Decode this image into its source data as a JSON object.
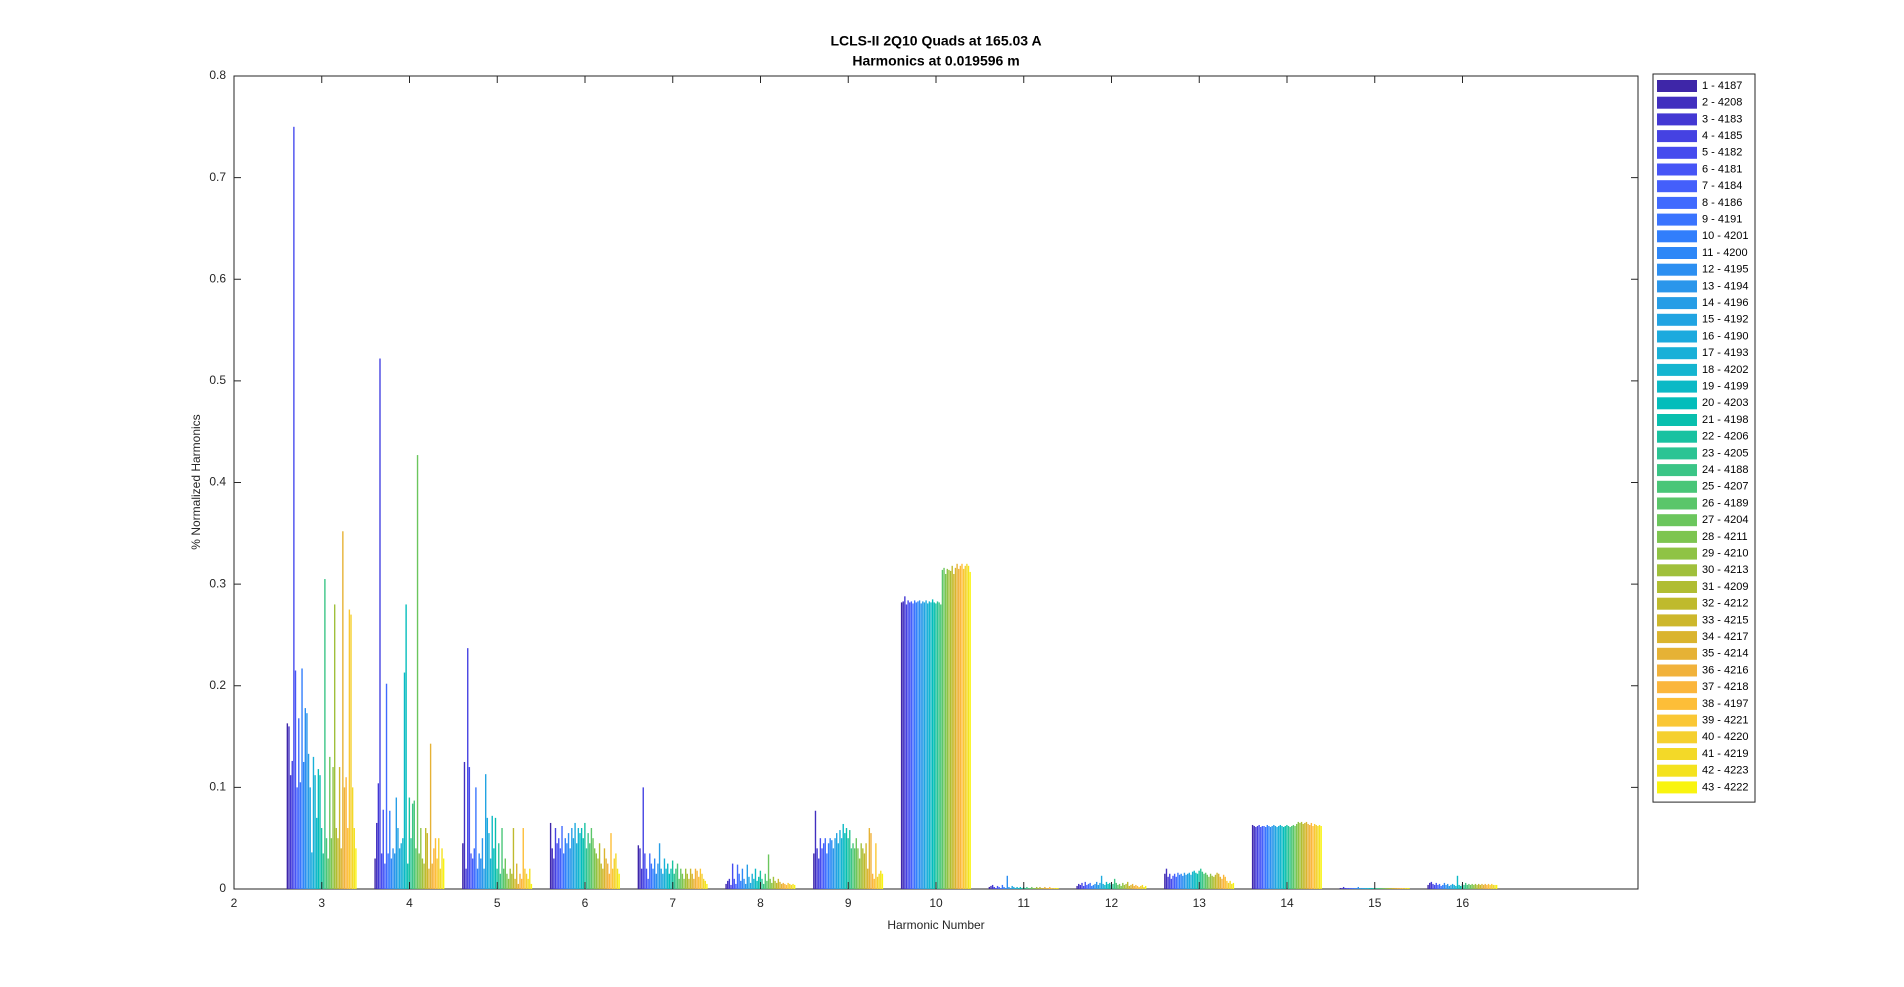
{
  "chart_data": {
    "type": "bar",
    "title": "LCLS-II 2Q10 Quads at 165.03 A",
    "subtitle": "Harmonics at 0.019596 m",
    "xlabel": "Harmonic Number",
    "ylabel": "% Normalized Harmonics",
    "x": [
      3,
      4,
      5,
      6,
      7,
      8,
      9,
      10,
      11,
      12,
      13,
      14,
      15,
      16
    ],
    "xlim": [
      2,
      18
    ],
    "ylim": [
      0,
      0.8
    ],
    "xticks": [
      2,
      3,
      4,
      5,
      6,
      7,
      8,
      9,
      10,
      11,
      12,
      13,
      14,
      15,
      16
    ],
    "yticks": [
      0,
      0.1,
      0.2,
      0.3,
      0.4,
      0.5,
      0.6,
      0.7,
      0.8
    ],
    "grid": false,
    "legend": "outside-right",
    "series": [
      {
        "name": "1 - 4187",
        "color": "#3e26a8",
        "values": [
          0.163,
          0.03,
          0.045,
          0.065,
          0.043,
          0.005,
          0.035,
          0.282,
          0.002,
          0.003,
          0.015,
          0.063,
          0.001,
          0.004
        ]
      },
      {
        "name": "2 - 4208",
        "color": "#412fbf",
        "values": [
          0.16,
          0.065,
          0.125,
          0.04,
          0.04,
          0.008,
          0.077,
          0.283,
          0.003,
          0.005,
          0.02,
          0.062,
          0.001,
          0.006
        ]
      },
      {
        "name": "3 - 4183",
        "color": "#4338d3",
        "values": [
          0.112,
          0.104,
          0.02,
          0.03,
          0.02,
          0.01,
          0.04,
          0.288,
          0.004,
          0.004,
          0.012,
          0.061,
          0.002,
          0.007
        ]
      },
      {
        "name": "4 - 4185",
        "color": "#4542e2",
        "values": [
          0.126,
          0.522,
          0.237,
          0.06,
          0.1,
          0.004,
          0.03,
          0.28,
          0.002,
          0.006,
          0.015,
          0.062,
          0.001,
          0.005
        ]
      },
      {
        "name": "5 - 4182",
        "color": "#464bee",
        "values": [
          0.75,
          0.035,
          0.12,
          0.045,
          0.035,
          0.025,
          0.05,
          0.284,
          0.001,
          0.003,
          0.01,
          0.063,
          0.001,
          0.004
        ]
      },
      {
        "name": "6 - 4181",
        "color": "#4655f6",
        "values": [
          0.215,
          0.078,
          0.035,
          0.05,
          0.02,
          0.01,
          0.04,
          0.282,
          0.003,
          0.007,
          0.013,
          0.061,
          0.001,
          0.006
        ]
      },
      {
        "name": "7 - 4184",
        "color": "#445ffb",
        "values": [
          0.1,
          0.025,
          0.03,
          0.04,
          0.01,
          0.005,
          0.045,
          0.283,
          0.002,
          0.004,
          0.015,
          0.062,
          0.001,
          0.004
        ]
      },
      {
        "name": "8 - 4186",
        "color": "#406afe",
        "values": [
          0.168,
          0.202,
          0.04,
          0.062,
          0.035,
          0.024,
          0.05,
          0.281,
          0.001,
          0.005,
          0.012,
          0.062,
          0.001,
          0.005
        ]
      },
      {
        "name": "9 - 4191",
        "color": "#3a74fe",
        "values": [
          0.105,
          0.035,
          0.1,
          0.035,
          0.025,
          0.015,
          0.035,
          0.284,
          0.004,
          0.006,
          0.016,
          0.061,
          0.001,
          0.003
        ]
      },
      {
        "name": "10 - 4201",
        "color": "#317efc",
        "values": [
          0.217,
          0.077,
          0.02,
          0.05,
          0.02,
          0.008,
          0.045,
          0.282,
          0.002,
          0.003,
          0.014,
          0.063,
          0.001,
          0.004
        ]
      },
      {
        "name": "11 - 4200",
        "color": "#2e87f7",
        "values": [
          0.125,
          0.03,
          0.035,
          0.045,
          0.03,
          0.02,
          0.05,
          0.283,
          0.001,
          0.004,
          0.015,
          0.062,
          0.001,
          0.006
        ]
      },
      {
        "name": "12 - 4195",
        "color": "#2c8ff1",
        "values": [
          0.178,
          0.04,
          0.03,
          0.055,
          0.015,
          0.01,
          0.048,
          0.284,
          0.013,
          0.005,
          0.013,
          0.061,
          0.002,
          0.004
        ]
      },
      {
        "name": "13 - 4194",
        "color": "#2a96eb",
        "values": [
          0.173,
          0.035,
          0.05,
          0.04,
          0.025,
          0.005,
          0.04,
          0.281,
          0.002,
          0.007,
          0.016,
          0.062,
          0.001,
          0.005
        ]
      },
      {
        "name": "14 - 4196",
        "color": "#269de6",
        "values": [
          0.133,
          0.09,
          0.02,
          0.06,
          0.045,
          0.024,
          0.05,
          0.283,
          0.001,
          0.004,
          0.014,
          0.063,
          0.001,
          0.003
        ]
      },
      {
        "name": "15 - 4192",
        "color": "#21a4e2",
        "values": [
          0.1,
          0.06,
          0.113,
          0.05,
          0.02,
          0.012,
          0.055,
          0.282,
          0.003,
          0.006,
          0.015,
          0.062,
          0.001,
          0.004
        ]
      },
      {
        "name": "16 - 4190",
        "color": "#1caade",
        "values": [
          0.036,
          0.04,
          0.07,
          0.065,
          0.015,
          0.006,
          0.045,
          0.284,
          0.002,
          0.013,
          0.016,
          0.061,
          0.001,
          0.005
        ]
      },
      {
        "name": "17 - 4193",
        "color": "#19b0d8",
        "values": [
          0.13,
          0.045,
          0.055,
          0.045,
          0.03,
          0.015,
          0.058,
          0.281,
          0.001,
          0.005,
          0.014,
          0.062,
          0.001,
          0.004
        ]
      },
      {
        "name": "18 - 4202",
        "color": "#14b5d0",
        "values": [
          0.112,
          0.05,
          0.03,
          0.06,
          0.02,
          0.01,
          0.05,
          0.283,
          0.002,
          0.004,
          0.017,
          0.063,
          0.001,
          0.003
        ]
      },
      {
        "name": "19 - 4199",
        "color": "#0bb9c6",
        "values": [
          0.07,
          0.213,
          0.072,
          0.055,
          0.025,
          0.02,
          0.064,
          0.282,
          0.001,
          0.007,
          0.018,
          0.062,
          0.001,
          0.013
        ]
      },
      {
        "name": "20 - 4203",
        "color": "#03bdbb",
        "values": [
          0.118,
          0.28,
          0.04,
          0.06,
          0.015,
          0.008,
          0.055,
          0.285,
          0.002,
          0.005,
          0.016,
          0.061,
          0.001,
          0.004
        ]
      },
      {
        "name": "21 - 4198",
        "color": "#08bfae",
        "values": [
          0.112,
          0.025,
          0.07,
          0.05,
          0.02,
          0.012,
          0.06,
          0.282,
          0.001,
          0.006,
          0.015,
          0.062,
          0.001,
          0.003
        ]
      },
      {
        "name": "22 - 4206",
        "color": "#18c2a1",
        "values": [
          0.06,
          0.09,
          0.02,
          0.065,
          0.028,
          0.018,
          0.05,
          0.281,
          0.002,
          0.004,
          0.018,
          0.063,
          0.001,
          0.005
        ]
      },
      {
        "name": "23 - 4205",
        "color": "#2bc494",
        "values": [
          0.035,
          0.05,
          0.045,
          0.04,
          0.015,
          0.01,
          0.058,
          0.283,
          0.001,
          0.005,
          0.02,
          0.062,
          0.001,
          0.004
        ]
      },
      {
        "name": "24 - 4188",
        "color": "#3ac586",
        "values": [
          0.305,
          0.084,
          0.015,
          0.055,
          0.02,
          0.005,
          0.04,
          0.282,
          0.002,
          0.01,
          0.017,
          0.061,
          0.001,
          0.006
        ]
      },
      {
        "name": "25 - 4207",
        "color": "#49c678",
        "values": [
          0.05,
          0.087,
          0.06,
          0.045,
          0.025,
          0.015,
          0.045,
          0.28,
          0.001,
          0.006,
          0.015,
          0.062,
          0.001,
          0.004
        ]
      },
      {
        "name": "26 - 4189",
        "color": "#5ac66a",
        "values": [
          0.03,
          0.04,
          0.02,
          0.06,
          0.01,
          0.008,
          0.04,
          0.314,
          0.001,
          0.004,
          0.016,
          0.063,
          0.001,
          0.005
        ]
      },
      {
        "name": "27 - 4204",
        "color": "#6bc65d",
        "values": [
          0.13,
          0.427,
          0.03,
          0.05,
          0.02,
          0.034,
          0.05,
          0.316,
          0.002,
          0.005,
          0.014,
          0.062,
          0.001,
          0.004
        ]
      },
      {
        "name": "28 - 4211",
        "color": "#7dc550",
        "values": [
          0.05,
          0.035,
          0.015,
          0.04,
          0.015,
          0.01,
          0.04,
          0.31,
          0.001,
          0.003,
          0.012,
          0.064,
          0.001,
          0.005
        ]
      },
      {
        "name": "29 - 4210",
        "color": "#8fc345",
        "values": [
          0.12,
          0.06,
          0.01,
          0.035,
          0.01,
          0.006,
          0.03,
          0.315,
          0.001,
          0.006,
          0.015,
          0.066,
          0.001,
          0.004
        ]
      },
      {
        "name": "30 - 4213",
        "color": "#a0c03b",
        "values": [
          0.28,
          0.03,
          0.02,
          0.03,
          0.02,
          0.012,
          0.045,
          0.314,
          0.002,
          0.004,
          0.013,
          0.065,
          0.001,
          0.005
        ]
      },
      {
        "name": "31 - 4209",
        "color": "#b0bd33",
        "values": [
          0.06,
          0.025,
          0.015,
          0.045,
          0.015,
          0.008,
          0.04,
          0.313,
          0.001,
          0.005,
          0.012,
          0.066,
          0.001,
          0.004
        ]
      },
      {
        "name": "32 - 4212",
        "color": "#bfba2d",
        "values": [
          0.05,
          0.06,
          0.06,
          0.025,
          0.01,
          0.006,
          0.035,
          0.318,
          0.002,
          0.007,
          0.014,
          0.064,
          0.001,
          0.005
        ]
      },
      {
        "name": "33 - 4215",
        "color": "#cdb72b",
        "values": [
          0.12,
          0.055,
          0.01,
          0.02,
          0.02,
          0.01,
          0.045,
          0.31,
          0.001,
          0.003,
          0.016,
          0.065,
          0.001,
          0.004
        ]
      },
      {
        "name": "34 - 4217",
        "color": "#dab42e",
        "values": [
          0.04,
          0.02,
          0.025,
          0.04,
          0.015,
          0.007,
          0.02,
          0.316,
          0.001,
          0.004,
          0.015,
          0.066,
          0.001,
          0.005
        ]
      },
      {
        "name": "35 - 4214",
        "color": "#e6b235",
        "values": [
          0.352,
          0.143,
          0.005,
          0.03,
          0.01,
          0.005,
          0.06,
          0.32,
          0.002,
          0.005,
          0.012,
          0.064,
          0.001,
          0.004
        ]
      },
      {
        "name": "36 - 4216",
        "color": "#f1b23b",
        "values": [
          0.1,
          0.025,
          0.015,
          0.025,
          0.02,
          0.006,
          0.055,
          0.315,
          0.001,
          0.003,
          0.01,
          0.063,
          0.001,
          0.005
        ]
      },
      {
        "name": "37 - 4218",
        "color": "#fbb63c",
        "values": [
          0.11,
          0.04,
          0.01,
          0.015,
          0.018,
          0.005,
          0.015,
          0.318,
          0.001,
          0.004,
          0.014,
          0.065,
          0.001,
          0.004
        ]
      },
      {
        "name": "38 - 4197",
        "color": "#fdbe38",
        "values": [
          0.06,
          0.05,
          0.06,
          0.055,
          0.012,
          0.004,
          0.01,
          0.32,
          0.002,
          0.003,
          0.012,
          0.062,
          0.001,
          0.005
        ]
      },
      {
        "name": "39 - 4221",
        "color": "#fac734",
        "values": [
          0.275,
          0.03,
          0.02,
          0.02,
          0.02,
          0.006,
          0.045,
          0.315,
          0.001,
          0.002,
          0.008,
          0.064,
          0.001,
          0.004
        ]
      },
      {
        "name": "40 - 4220",
        "color": "#f5d02f",
        "values": [
          0.27,
          0.05,
          0.015,
          0.03,
          0.015,
          0.005,
          0.012,
          0.318,
          0.001,
          0.003,
          0.006,
          0.063,
          0.001,
          0.005
        ]
      },
      {
        "name": "41 - 4219",
        "color": "#f3d928",
        "values": [
          0.1,
          0.02,
          0.01,
          0.035,
          0.01,
          0.004,
          0.015,
          0.32,
          0.001,
          0.004,
          0.008,
          0.062,
          0.001,
          0.004
        ]
      },
      {
        "name": "42 - 4223",
        "color": "#f4e21e",
        "values": [
          0.06,
          0.04,
          0.02,
          0.02,
          0.008,
          0.005,
          0.018,
          0.318,
          0.001,
          0.002,
          0.005,
          0.063,
          0.001,
          0.004
        ]
      },
      {
        "name": "43 - 4222",
        "color": "#f9f40f",
        "values": [
          0.04,
          0.03,
          0.005,
          0.015,
          0.005,
          0.004,
          0.015,
          0.312,
          0.001,
          0.003,
          0.006,
          0.062,
          0.001,
          0.004
        ]
      }
    ]
  }
}
